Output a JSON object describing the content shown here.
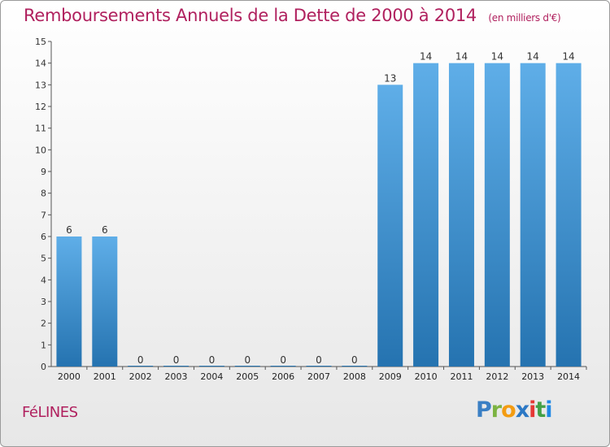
{
  "header": {
    "title": "Remboursements Annuels de la Dette de 2000 à 2014",
    "unit": "(en milliers d'€)"
  },
  "footer": {
    "commune": "FéLINES",
    "brand": [
      "P",
      "r",
      "o",
      "x",
      "i",
      "t",
      "i"
    ],
    "brand_colors": [
      "#3a7fc4",
      "#7cb342",
      "#f39c12",
      "#2b78c5",
      "#e53935",
      "#43a047",
      "#1e88e5"
    ]
  },
  "colors": {
    "title": "#b0205e",
    "bar_top": "#5faee8",
    "bar_bottom": "#2573b0",
    "axis": "#555555"
  },
  "chart_data": {
    "type": "bar",
    "title": "Remboursements Annuels de la Dette de 2000 à 2014",
    "xlabel": "",
    "ylabel": "",
    "categories": [
      "2000",
      "2001",
      "2002",
      "2003",
      "2004",
      "2005",
      "2006",
      "2007",
      "2008",
      "2009",
      "2010",
      "2011",
      "2012",
      "2013",
      "2014"
    ],
    "values": [
      6,
      6,
      0,
      0,
      0,
      0,
      0,
      0,
      0,
      13,
      14,
      14,
      14,
      14,
      14
    ],
    "ylim": [
      0,
      15
    ],
    "yticks": [
      "0",
      "1",
      "2",
      "3",
      "4",
      "5",
      "6",
      "7",
      "8",
      "9",
      "10",
      "11",
      "12",
      "13",
      "14",
      "15"
    ],
    "grid": false
  }
}
